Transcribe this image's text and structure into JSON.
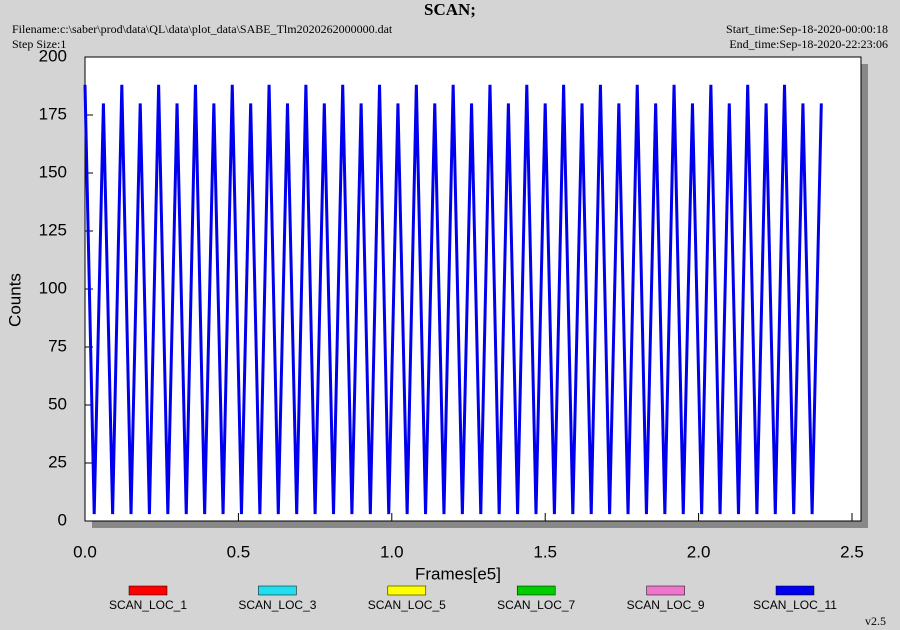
{
  "chart_data": {
    "type": "line",
    "title": "SCAN;",
    "filename": "Filename:c:\\saber\\prod\\data\\QL\\data\\plot_data\\SABE_Tlm2020262000000.dat",
    "step_size": "Step Size:1",
    "start_time": "Start_time:Sep-18-2020-00:00:18",
    "end_time": "End_time:Sep-18-2020-22:23:06",
    "version": "v2.5",
    "xlabel": "Frames[e5]",
    "ylabel": "Counts",
    "xlim": [
      0,
      2.5
    ],
    "ylim": [
      0,
      200
    ],
    "xticks": [
      {
        "value": 0,
        "label": "0.0"
      },
      {
        "value": 0.5,
        "label": "0.5"
      },
      {
        "value": 1,
        "label": "1.0"
      },
      {
        "value": 1.5,
        "label": "1.5"
      },
      {
        "value": 2,
        "label": "2.0"
      },
      {
        "value": 2.5,
        "label": "2.5"
      }
    ],
    "yticks": [
      0,
      25,
      50,
      75,
      100,
      125,
      150,
      175,
      200
    ],
    "legend": [
      {
        "name": "SCAN_LOC_1",
        "color": "#ff0000"
      },
      {
        "name": "SCAN_LOC_3",
        "color": "#22ddee"
      },
      {
        "name": "SCAN_LOC_5",
        "color": "#ffff00"
      },
      {
        "name": "SCAN_LOC_7",
        "color": "#00cc00"
      },
      {
        "name": "SCAN_LOC_9",
        "color": "#ee77cc"
      },
      {
        "name": "SCAN_LOC_11",
        "color": "#0000ee"
      }
    ],
    "series": [
      {
        "name": "SCAN_LOC_11",
        "color": "#0000ee",
        "x": [
          0,
          0.03,
          0.06,
          0.09,
          0.12,
          0.15,
          0.18,
          0.21,
          0.24,
          0.27,
          0.3,
          0.33,
          0.36,
          0.39,
          0.42,
          0.45,
          0.48,
          0.51,
          0.54,
          0.57,
          0.6,
          0.63,
          0.66,
          0.69,
          0.72,
          0.75,
          0.78,
          0.81,
          0.84,
          0.87,
          0.9,
          0.93,
          0.96,
          0.99,
          1.02,
          1.05,
          1.08,
          1.11,
          1.14,
          1.17,
          1.2,
          1.23,
          1.26,
          1.29,
          1.32,
          1.35,
          1.38,
          1.41,
          1.44,
          1.47,
          1.5,
          1.53,
          1.56,
          1.59,
          1.62,
          1.65,
          1.68,
          1.71,
          1.74,
          1.77,
          1.8,
          1.83,
          1.86,
          1.89,
          1.92,
          1.95,
          1.98,
          2.01,
          2.04,
          2.07,
          2.1,
          2.13,
          2.16,
          2.19,
          2.22,
          2.25,
          2.28,
          2.31,
          2.34,
          2.37,
          2.4
        ],
        "values": [
          188,
          3,
          180,
          3,
          188,
          3,
          180,
          3,
          188,
          3,
          180,
          3,
          188,
          3,
          180,
          3,
          188,
          3,
          180,
          3,
          188,
          3,
          180,
          3,
          188,
          3,
          180,
          3,
          188,
          3,
          180,
          3,
          188,
          3,
          180,
          3,
          188,
          3,
          180,
          3,
          188,
          3,
          180,
          3,
          188,
          3,
          180,
          3,
          188,
          3,
          180,
          3,
          188,
          3,
          180,
          3,
          188,
          3,
          180,
          3,
          188,
          3,
          180,
          3,
          188,
          3,
          180,
          3,
          188,
          3,
          180,
          3,
          188,
          3,
          180,
          3,
          188,
          3,
          180,
          3,
          180
        ]
      }
    ]
  }
}
